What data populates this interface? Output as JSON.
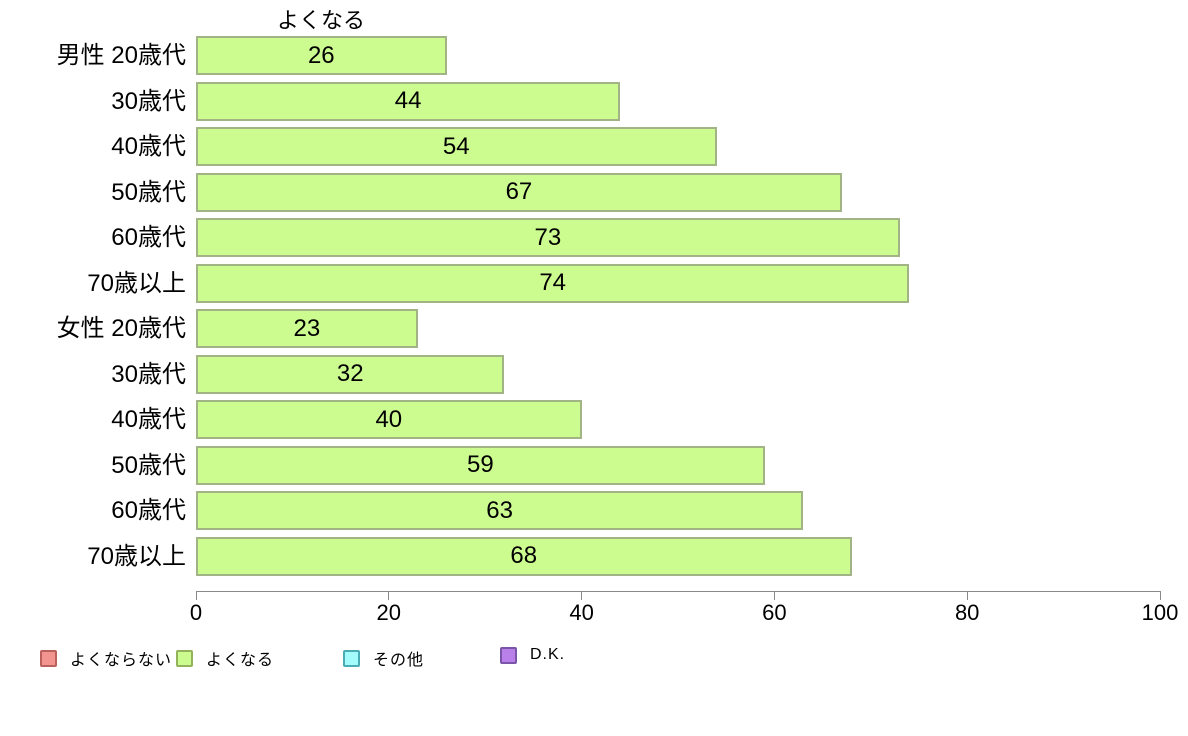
{
  "chart_data": {
    "type": "bar",
    "orientation": "horizontal",
    "title": "よくなる",
    "categories": [
      "男性 20歳代",
      "30歳代",
      "40歳代",
      "50歳代",
      "60歳代",
      "70歳以上",
      "女性 20歳代",
      "30歳代",
      "40歳代",
      "50歳代",
      "60歳代",
      "70歳以上"
    ],
    "values": [
      26,
      44,
      54,
      67,
      73,
      74,
      23,
      32,
      40,
      59,
      63,
      68
    ],
    "series_name": "よくなる",
    "xlabel": "",
    "ylabel": "",
    "xlim": [
      0,
      100
    ],
    "x_ticks": [
      0,
      20,
      40,
      60,
      80,
      100
    ],
    "grid": false,
    "bar_fill": "#ccfb90",
    "bar_border": "#a2b385",
    "axis_color": "#8a8a8a",
    "legend_position": "bottom",
    "legend": [
      {
        "label": "よくならない",
        "fill": "#f29490",
        "border": "#bb615d"
      },
      {
        "label": "よくなる",
        "fill": "#ccfb90",
        "border": "#94b25c"
      },
      {
        "label": "その他",
        "fill": "#a3fbfb",
        "border": "#4aacb4"
      },
      {
        "label": "D.K.",
        "fill": "#b880e8",
        "border": "#7b55a8"
      }
    ]
  }
}
